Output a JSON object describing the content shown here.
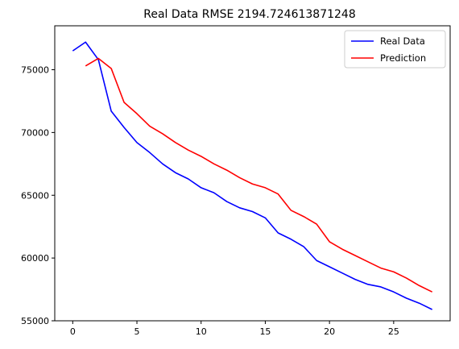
{
  "chart_data": {
    "type": "line",
    "title": "Real Data RMSE 2194.724613871248",
    "xlabel": "",
    "ylabel": "",
    "xlim": [
      -1.4,
      29.4
    ],
    "ylim": [
      55000,
      78500
    ],
    "xticks": [
      0,
      5,
      10,
      15,
      20,
      25
    ],
    "yticks": [
      55000,
      60000,
      65000,
      70000,
      75000
    ],
    "grid": false,
    "legend_position": "top-right",
    "series": [
      {
        "name": "Real Data",
        "color": "#0000ff",
        "x": [
          0,
          1,
          2,
          3,
          4,
          5,
          6,
          7,
          8,
          9,
          10,
          11,
          12,
          13,
          14,
          15,
          16,
          17,
          18,
          19,
          20,
          21,
          22,
          23,
          24,
          25,
          26,
          27,
          28
        ],
        "values": [
          76500,
          77200,
          75800,
          71700,
          70400,
          69200,
          68400,
          67500,
          66800,
          66300,
          65600,
          65200,
          64500,
          64000,
          63700,
          63200,
          62000,
          61500,
          60900,
          59800,
          59300,
          58800,
          58300,
          57900,
          57700,
          57300,
          56800,
          56400,
          55900
        ]
      },
      {
        "name": "Prediction",
        "color": "#ff0000",
        "x": [
          1,
          2,
          3,
          4,
          5,
          6,
          7,
          8,
          9,
          10,
          11,
          12,
          13,
          14,
          15,
          16,
          17,
          18,
          19,
          20,
          21,
          22,
          23,
          24,
          25,
          26,
          27,
          28
        ],
        "values": [
          75300,
          75900,
          75100,
          72400,
          71500,
          70500,
          69900,
          69200,
          68600,
          68100,
          67500,
          67000,
          66400,
          65900,
          65600,
          65100,
          63800,
          63300,
          62700,
          61300,
          60700,
          60200,
          59700,
          59200,
          58900,
          58400,
          57800,
          57300
        ]
      }
    ]
  }
}
